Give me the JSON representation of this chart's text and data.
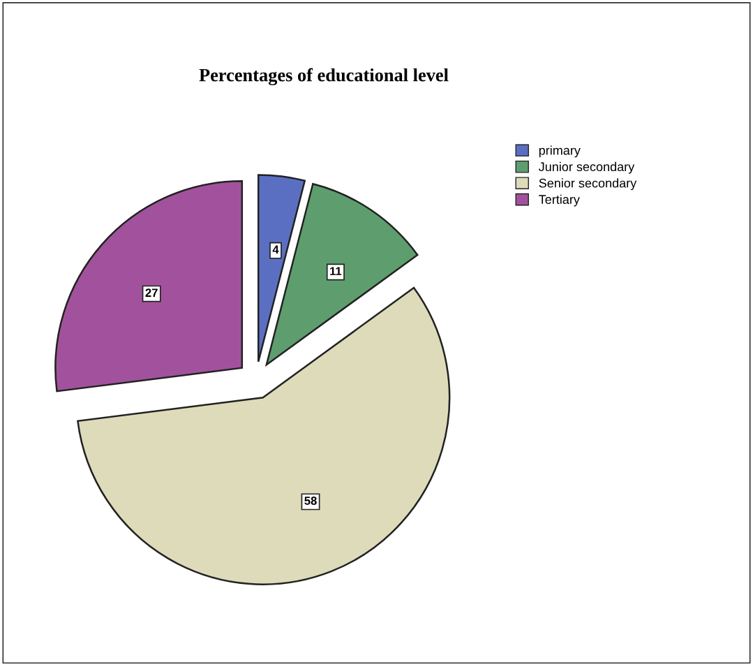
{
  "chart_data": {
    "type": "pie",
    "title": "Percentages of educational level",
    "categories": [
      "primary",
      "Junior secondary",
      "Senior secondary",
      "Tertiary"
    ],
    "values": [
      4,
      11,
      58,
      27
    ],
    "colors": [
      "#5b6fc2",
      "#5e9e6e",
      "#dedbba",
      "#a2529c"
    ],
    "data_labels": true,
    "legend": "top right"
  }
}
